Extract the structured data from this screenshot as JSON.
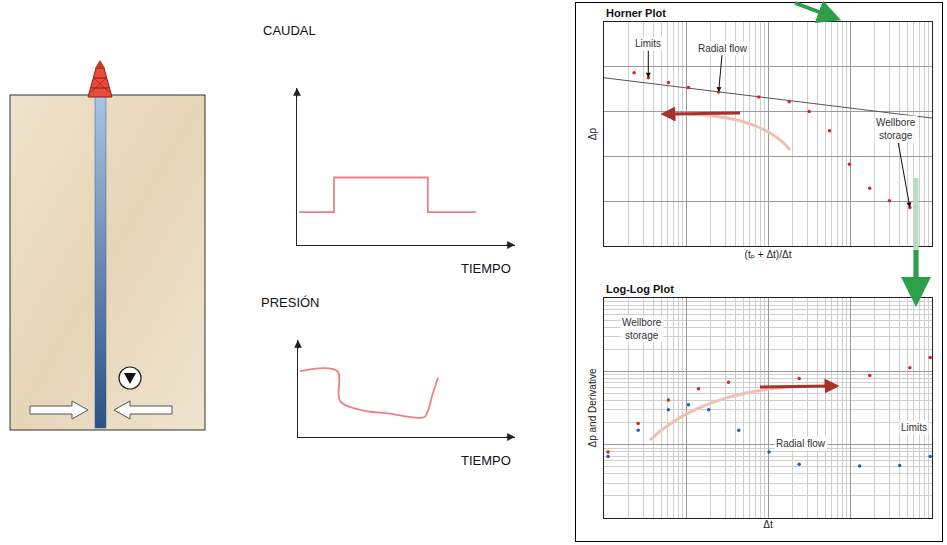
{
  "chart_data": [
    {
      "type": "line",
      "y_label": "CAUDAL",
      "x_label": "TIEMPO",
      "x": [
        0.1,
        1.7,
        1.7,
        6.0,
        6.0,
        8.2
      ],
      "values": [
        2.1,
        2.1,
        4.3,
        4.3,
        2.1,
        2.1
      ],
      "color": "#f08080",
      "line_style": "solid",
      "xlim": [
        0,
        10
      ],
      "ylim": [
        0,
        10
      ],
      "grid": false,
      "tick_labels": false
    },
    {
      "type": "line",
      "y_label": "PRESIÓN",
      "x_label": "TIEMPO",
      "x": [
        0.09,
        1.8,
        1.94,
        2.86,
        4.24,
        5.4,
        5.85,
        6.2,
        6.45
      ],
      "values": [
        6.8,
        6.8,
        3.7,
        2.8,
        2.4,
        2.0,
        2.1,
        4.4,
        6.1
      ],
      "color": "#f08080",
      "line_style": "smooth",
      "xlim": [
        0,
        10
      ],
      "ylim": [
        0,
        10
      ],
      "grid": false,
      "tick_labels": false
    },
    {
      "type": "line",
      "title": "Horner Plot",
      "x_label": "(tₚ + Δt)/Δt",
      "y_label": "Δp",
      "log": "x",
      "xlim": [
        1,
        10000
      ],
      "ylim": [
        0,
        10
      ],
      "xticks": [
        1,
        10,
        100,
        1000,
        10000
      ],
      "yticks": [
        0,
        2,
        4,
        6,
        8,
        10
      ],
      "grid": true,
      "tick_labels": false,
      "series": [
        {
          "color": "#e31e24",
          "marker": "dot",
          "line_style": "none",
          "x": [
            2.33,
            3.47,
            6.1,
            10.7,
            25,
            77,
            181,
            318,
            562,
            984,
            1740,
            3030,
            5370
          ],
          "values": [
            7.73,
            7.51,
            7.3,
            7.08,
            6.87,
            6.65,
            6.44,
            6.01,
            5.15,
            3.65,
            2.58,
            2.02,
            1.72
          ]
        },
        {
          "color": "#555555",
          "line_style": "solid",
          "x": [
            1,
            10000
          ],
          "values": [
            7.51,
            5.71
          ]
        }
      ],
      "annotations": [
        "Limits",
        "Radial flow",
        "Wellbore storage"
      ]
    },
    {
      "type": "line",
      "title": "Log-Log Plot",
      "x_label": "Δt",
      "y_label": "Δp and Derivative",
      "log": true,
      "xlim": [
        1,
        10000
      ],
      "ylim": [
        1,
        1000
      ],
      "xticks": [
        1,
        10,
        100,
        1000,
        10000
      ],
      "yticks": [
        1,
        10,
        100,
        1000
      ],
      "grid": true,
      "tick_labels": false,
      "series": [
        {
          "color": "#e31e24",
          "marker": "dot",
          "line_style": "none",
          "x": [
            1.12,
            2.61,
            6.1,
            14.2,
            33,
            240,
            1740,
            5370,
            9500
          ],
          "values": [
            7.95,
            19.4,
            40.7,
            58,
            71,
            80,
            88,
            112,
            154
          ]
        },
        {
          "color": "#1f5fbf",
          "marker": "dot",
          "line_style": "none",
          "x": [
            1.12,
            2.61,
            6.1,
            10.7,
            18.9,
            44,
            103,
            240,
            1310,
            4040,
            9500
          ],
          "values": [
            6.9,
            15.7,
            30,
            35,
            30,
            15.7,
            7.95,
            5.4,
            5.1,
            5.2,
            6.9
          ]
        }
      ],
      "annotations": [
        "Wellbore storage",
        "Radial flow",
        "Limits"
      ]
    }
  ]
}
